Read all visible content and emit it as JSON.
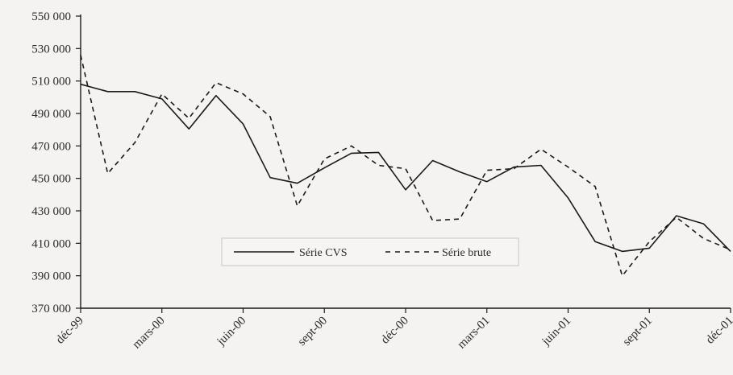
{
  "chart_data": {
    "type": "line",
    "title": "",
    "xlabel": "",
    "ylabel": "",
    "ylim": [
      370000,
      550000
    ],
    "yticks": [
      "370 000",
      "390 000",
      "410 000",
      "430 000",
      "450 000",
      "470 000",
      "490 000",
      "510 000",
      "530 000",
      "550 000"
    ],
    "ytick_values": [
      370000,
      390000,
      410000,
      430000,
      450000,
      470000,
      490000,
      510000,
      530000,
      550000
    ],
    "x": [
      "déc-99",
      "janv-00",
      "févr-00",
      "mars-00",
      "avr-00",
      "mai-00",
      "juin-00",
      "juil-00",
      "août-00",
      "sept-00",
      "oct-00",
      "nov-00",
      "déc-00",
      "janv-01",
      "févr-01",
      "mars-01",
      "avr-01",
      "mai-01",
      "juin-01",
      "juil-01",
      "août-01",
      "sept-01",
      "oct-01",
      "nov-01",
      "déc-01"
    ],
    "xtick_labels": [
      "déc-99",
      "mars-00",
      "juin-00",
      "sept-00",
      "déc-00",
      "mars-01",
      "juin-01",
      "sept-01",
      "déc-01"
    ],
    "xtick_index": [
      0,
      3,
      6,
      9,
      12,
      15,
      18,
      21,
      24
    ],
    "grid": false,
    "legend_position": "center-bottom",
    "series": [
      {
        "name": "Série CVS",
        "style": "solid",
        "color": "#1a1a1a",
        "values": [
          508000,
          503500,
          503500,
          499000,
          480500,
          501000,
          483500,
          450500,
          447000,
          456500,
          465500,
          466000,
          443000,
          461000,
          454000,
          448000,
          457000,
          458000,
          438000,
          411000,
          405000,
          407000,
          427000,
          422000,
          405000
        ]
      },
      {
        "name": "Série brute",
        "style": "dashed",
        "color": "#1a1a1a",
        "values": [
          526000,
          453000,
          472000,
          502000,
          487000,
          509000,
          502000,
          488000,
          433000,
          462000,
          470000,
          458000,
          456000,
          424000,
          425000,
          455000,
          456000,
          468000,
          457000,
          445000,
          390000,
          411000,
          426000,
          413000,
          406000
        ]
      }
    ]
  }
}
